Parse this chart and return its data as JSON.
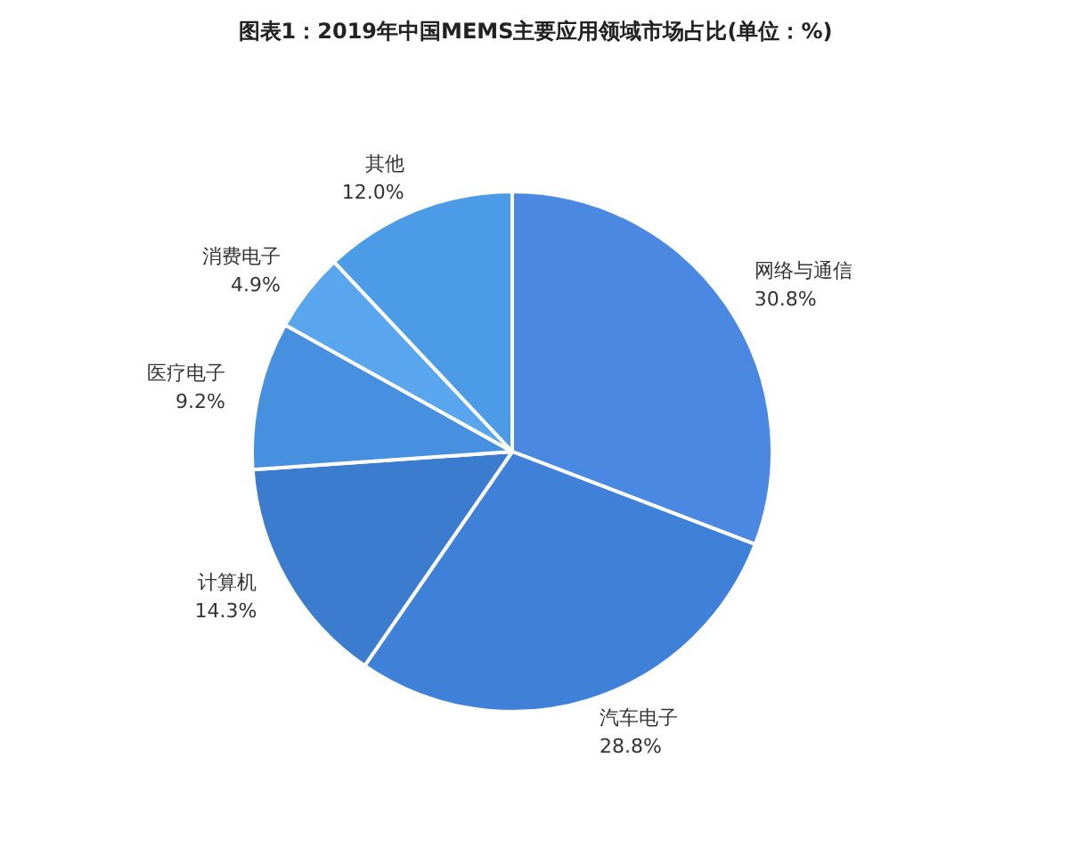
{
  "chart_data": {
    "type": "pie",
    "title": "图表1：2019年中国MEMS主要应用领域市场占比(单位：%)",
    "categories": [
      "网络与通信",
      "汽车电子",
      "计算机",
      "医疗电子",
      "消费电子",
      "其他"
    ],
    "values": [
      30.8,
      28.8,
      14.3,
      9.2,
      4.9,
      12.0
    ],
    "colors": [
      "#4a88e2",
      "#3f80d8",
      "#3b7ccf",
      "#4690df",
      "#5aa6ee",
      "#4c9be6"
    ],
    "data_labels": true,
    "value_labels": [
      "30.8%",
      "28.8%",
      "14.3%",
      "9.2%",
      "4.9%",
      "12.0%"
    ]
  }
}
